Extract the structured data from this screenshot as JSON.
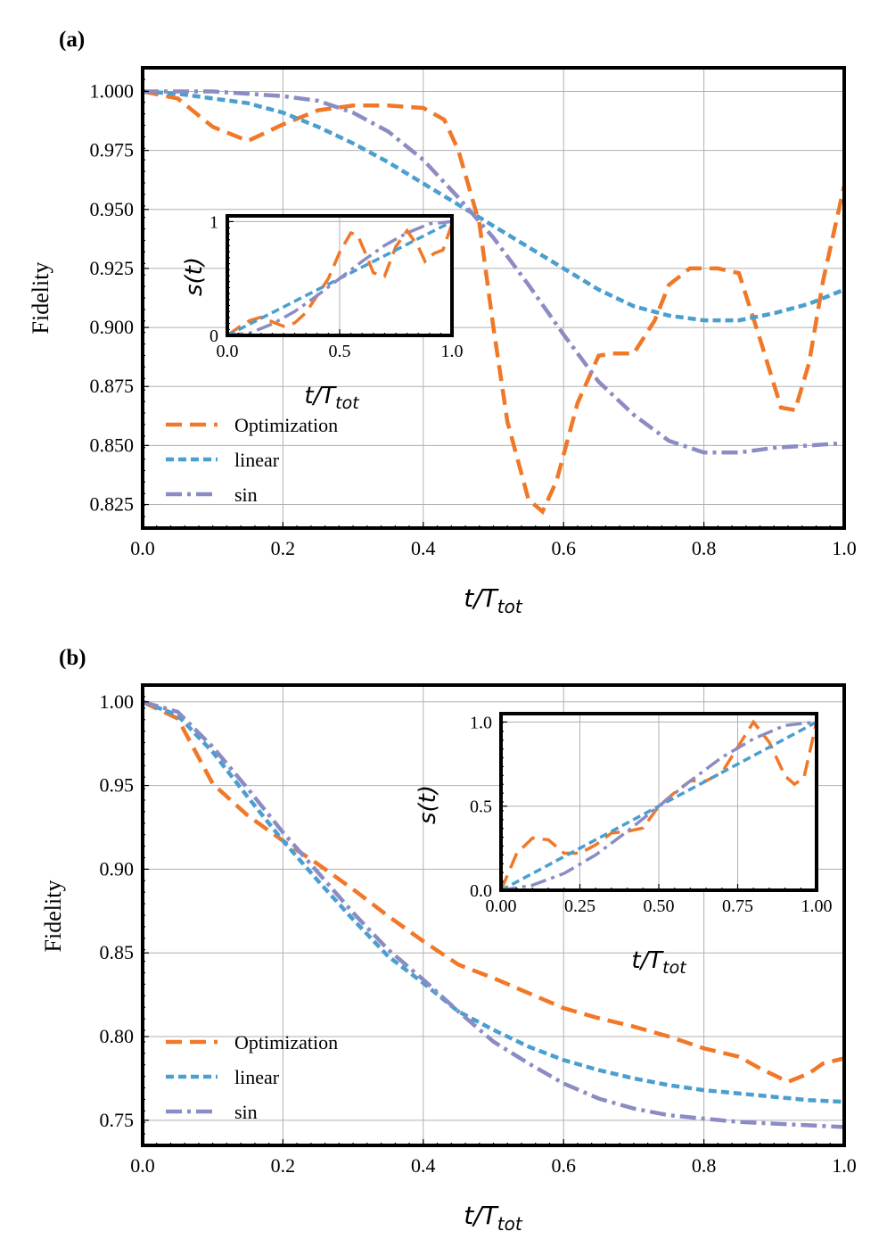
{
  "chart_data": [
    {
      "type": "line",
      "panel": "(a)",
      "xlabel": "t/T",
      "xlabel_sub": "tot",
      "ylabel": "Fidelity",
      "xlim": [
        0.0,
        1.0
      ],
      "ylim": [
        0.815,
        1.01
      ],
      "xticks": [
        "0.0",
        "0.2",
        "0.4",
        "0.6",
        "0.8",
        "1.0"
      ],
      "yticks": [
        "0.825",
        "0.850",
        "0.875",
        "0.900",
        "0.925",
        "0.950",
        "0.975",
        "1.000"
      ],
      "legend": [
        "Optimization",
        "linear",
        "sin"
      ],
      "legend_position": "lower-left",
      "series": [
        {
          "name": "Optimization",
          "color": "#f07828",
          "dash": "dash",
          "x": [
            0.0,
            0.05,
            0.1,
            0.15,
            0.2,
            0.25,
            0.3,
            0.35,
            0.4,
            0.43,
            0.45,
            0.48,
            0.5,
            0.52,
            0.55,
            0.57,
            0.59,
            0.62,
            0.65,
            0.67,
            0.7,
            0.73,
            0.75,
            0.78,
            0.82,
            0.85,
            0.88,
            0.91,
            0.93,
            0.95,
            0.97,
            1.0
          ],
          "y": [
            1.0,
            0.997,
            0.985,
            0.979,
            0.986,
            0.992,
            0.994,
            0.994,
            0.993,
            0.988,
            0.975,
            0.944,
            0.9,
            0.86,
            0.827,
            0.822,
            0.835,
            0.868,
            0.888,
            0.889,
            0.889,
            0.903,
            0.918,
            0.925,
            0.925,
            0.923,
            0.895,
            0.866,
            0.865,
            0.885,
            0.92,
            0.96
          ]
        },
        {
          "name": "linear",
          "color": "#4b9fcf",
          "dash": "dot",
          "x": [
            0.0,
            0.05,
            0.1,
            0.15,
            0.2,
            0.25,
            0.3,
            0.35,
            0.4,
            0.45,
            0.5,
            0.55,
            0.6,
            0.65,
            0.7,
            0.75,
            0.8,
            0.85,
            0.9,
            0.95,
            1.0
          ],
          "y": [
            1.0,
            0.999,
            0.997,
            0.995,
            0.991,
            0.985,
            0.978,
            0.97,
            0.961,
            0.952,
            0.943,
            0.934,
            0.925,
            0.916,
            0.909,
            0.905,
            0.903,
            0.903,
            0.906,
            0.91,
            0.916
          ]
        },
        {
          "name": "sin",
          "color": "#8c8cc4",
          "dash": "dashdot",
          "x": [
            0.0,
            0.05,
            0.1,
            0.15,
            0.2,
            0.25,
            0.3,
            0.35,
            0.4,
            0.45,
            0.5,
            0.55,
            0.6,
            0.65,
            0.7,
            0.75,
            0.8,
            0.85,
            0.9,
            0.95,
            1.0
          ],
          "y": [
            1.0,
            1.0,
            1.0,
            0.999,
            0.998,
            0.996,
            0.991,
            0.983,
            0.971,
            0.955,
            0.938,
            0.918,
            0.897,
            0.877,
            0.863,
            0.852,
            0.847,
            0.847,
            0.849,
            0.85,
            0.851
          ]
        }
      ],
      "inset": {
        "ylabel": "s(t)",
        "xlabel": "t/T",
        "xlabel_sub": "tot",
        "xlim": [
          0.0,
          1.0
        ],
        "ylim": [
          0.0,
          1.05
        ],
        "xticks": [
          "0.0",
          "0.5",
          "1.0"
        ],
        "yticks": [
          "0",
          "1"
        ],
        "series": [
          {
            "name": "Optimization",
            "x": [
              0.0,
              0.05,
              0.1,
              0.15,
              0.2,
              0.25,
              0.3,
              0.35,
              0.4,
              0.45,
              0.5,
              0.55,
              0.58,
              0.62,
              0.65,
              0.7,
              0.75,
              0.8,
              0.85,
              0.88,
              0.92,
              0.96,
              1.0
            ],
            "y": [
              0.0,
              0.07,
              0.13,
              0.16,
              0.12,
              0.08,
              0.11,
              0.2,
              0.35,
              0.5,
              0.73,
              0.9,
              0.88,
              0.7,
              0.55,
              0.52,
              0.78,
              0.92,
              0.78,
              0.65,
              0.72,
              0.75,
              0.98
            ]
          },
          {
            "name": "linear",
            "x": [
              0.0,
              1.0
            ],
            "y": [
              0.0,
              1.0
            ]
          },
          {
            "name": "sin",
            "x": [
              0.0,
              0.1,
              0.2,
              0.3,
              0.4,
              0.5,
              0.6,
              0.7,
              0.8,
              0.9,
              1.0
            ],
            "y": [
              0.0,
              0.02,
              0.1,
              0.21,
              0.35,
              0.5,
              0.65,
              0.79,
              0.9,
              0.98,
              1.0
            ]
          }
        ]
      }
    },
    {
      "type": "line",
      "panel": "(b)",
      "xlabel": "t/T",
      "xlabel_sub": "tot",
      "ylabel": "Fidelity",
      "xlim": [
        0.0,
        1.0
      ],
      "ylim": [
        0.735,
        1.01
      ],
      "xticks": [
        "0.0",
        "0.2",
        "0.4",
        "0.6",
        "0.8",
        "1.0"
      ],
      "yticks": [
        "0.75",
        "0.80",
        "0.85",
        "0.90",
        "0.95",
        "1.00"
      ],
      "legend": [
        "Optimization",
        "linear",
        "sin"
      ],
      "legend_position": "lower-left",
      "series": [
        {
          "name": "Optimization",
          "x": [
            0.0,
            0.05,
            0.1,
            0.15,
            0.2,
            0.25,
            0.3,
            0.35,
            0.4,
            0.45,
            0.5,
            0.55,
            0.6,
            0.65,
            0.7,
            0.75,
            0.8,
            0.85,
            0.88,
            0.9,
            0.92,
            0.95,
            0.97,
            1.0
          ],
          "y": [
            1.0,
            0.99,
            0.951,
            0.932,
            0.917,
            0.903,
            0.888,
            0.872,
            0.857,
            0.843,
            0.835,
            0.826,
            0.817,
            0.811,
            0.806,
            0.8,
            0.793,
            0.788,
            0.781,
            0.777,
            0.773,
            0.778,
            0.784,
            0.787
          ]
        },
        {
          "name": "linear",
          "x": [
            0.0,
            0.05,
            0.1,
            0.15,
            0.2,
            0.25,
            0.3,
            0.35,
            0.4,
            0.45,
            0.5,
            0.55,
            0.6,
            0.65,
            0.7,
            0.75,
            0.8,
            0.85,
            0.9,
            0.95,
            1.0
          ],
          "y": [
            1.0,
            0.992,
            0.97,
            0.943,
            0.917,
            0.893,
            0.87,
            0.848,
            0.832,
            0.815,
            0.804,
            0.794,
            0.786,
            0.78,
            0.775,
            0.771,
            0.768,
            0.766,
            0.764,
            0.762,
            0.761
          ]
        },
        {
          "name": "sin",
          "x": [
            0.0,
            0.05,
            0.1,
            0.15,
            0.2,
            0.25,
            0.3,
            0.35,
            0.4,
            0.45,
            0.5,
            0.55,
            0.6,
            0.65,
            0.7,
            0.75,
            0.8,
            0.85,
            0.9,
            0.95,
            1.0
          ],
          "y": [
            1.0,
            0.994,
            0.973,
            0.948,
            0.922,
            0.898,
            0.874,
            0.852,
            0.834,
            0.815,
            0.797,
            0.784,
            0.772,
            0.763,
            0.757,
            0.753,
            0.751,
            0.749,
            0.748,
            0.747,
            0.746
          ]
        }
      ],
      "inset": {
        "ylabel": "s(t)",
        "xlabel": "t/T",
        "xlabel_sub": "tot",
        "xlim": [
          0.0,
          1.0
        ],
        "ylim": [
          0.0,
          1.05
        ],
        "xticks": [
          "0.00",
          "0.25",
          "0.50",
          "0.75",
          "1.00"
        ],
        "yticks": [
          "0.0",
          "0.5",
          "1.0"
        ],
        "series": [
          {
            "name": "Optimization",
            "x": [
              0.0,
              0.05,
              0.1,
              0.15,
              0.2,
              0.25,
              0.3,
              0.35,
              0.4,
              0.45,
              0.5,
              0.55,
              0.6,
              0.65,
              0.7,
              0.75,
              0.8,
              0.85,
              0.9,
              0.93,
              0.96,
              1.0
            ],
            "y": [
              0.0,
              0.22,
              0.31,
              0.3,
              0.22,
              0.22,
              0.27,
              0.34,
              0.35,
              0.37,
              0.5,
              0.58,
              0.65,
              0.65,
              0.7,
              0.85,
              1.0,
              0.88,
              0.68,
              0.63,
              0.67,
              1.0
            ]
          },
          {
            "name": "linear",
            "x": [
              0.0,
              1.0
            ],
            "y": [
              0.0,
              1.0
            ]
          },
          {
            "name": "sin",
            "x": [
              0.0,
              0.1,
              0.2,
              0.3,
              0.4,
              0.5,
              0.6,
              0.7,
              0.8,
              0.9,
              1.0
            ],
            "y": [
              0.0,
              0.03,
              0.1,
              0.21,
              0.35,
              0.5,
              0.65,
              0.79,
              0.9,
              0.98,
              1.0
            ]
          }
        ]
      }
    }
  ]
}
